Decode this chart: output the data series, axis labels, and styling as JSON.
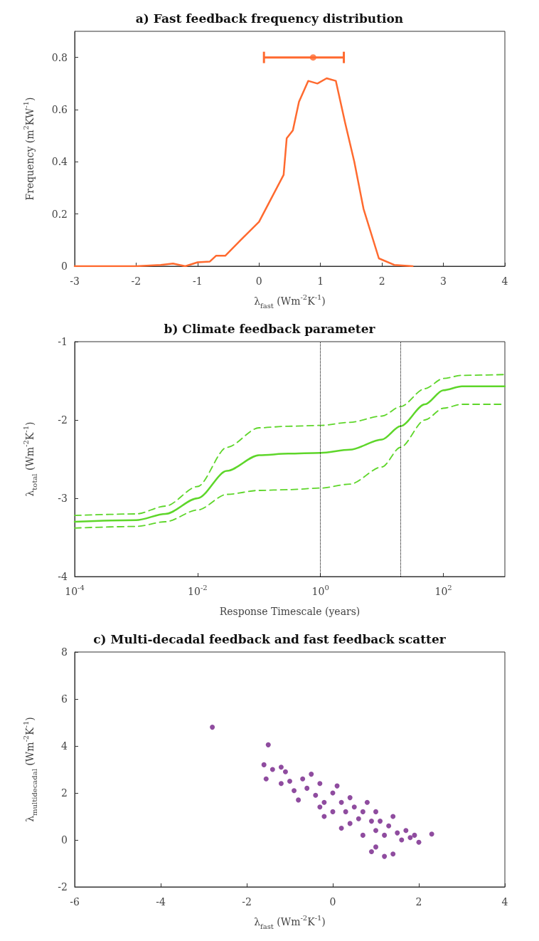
{
  "chart_data": [
    {
      "type": "line",
      "title": "a) Fast feedback frequency distribution",
      "xlabel": "λ$_{fast}$ (Wm$^{-2}$K$^{-1}$)",
      "ylabel": "Frequency (m$^{2}$KW$^{-1}$)",
      "xlim": [
        -3,
        4
      ],
      "xticks": [
        -3,
        -2,
        -1,
        0,
        1,
        2,
        3,
        4
      ],
      "ylim": [
        0,
        0.9
      ],
      "yticks": [
        0,
        0.2,
        0.4,
        0.6,
        0.8
      ],
      "series": [
        {
          "color": "#ff6a2f",
          "x": [
            -3,
            -2.5,
            -2,
            -1.6,
            -1.4,
            -1.2,
            -1.0,
            -0.8,
            -0.7,
            -0.55,
            -0.3,
            0,
            0.2,
            0.4,
            0.45,
            0.55,
            0.65,
            0.8,
            0.95,
            1.1,
            1.25,
            1.4,
            1.55,
            1.7,
            1.95,
            2.2,
            2.5
          ],
          "values": [
            0,
            0,
            0,
            0.005,
            0.01,
            0,
            0.015,
            0.018,
            0.04,
            0.04,
            0.1,
            0.17,
            0.26,
            0.35,
            0.49,
            0.52,
            0.63,
            0.71,
            0.7,
            0.72,
            0.71,
            0.55,
            0.4,
            0.22,
            0.03,
            0.005,
            0
          ]
        },
        {
          "type": "scatter",
          "color": "#ff6a2f",
          "x": [
            0.88
          ],
          "values": [
            0.8
          ],
          "xerrors": [
            [
              0.08,
              1.38
            ]
          ]
        }
      ]
    },
    {
      "type": "line",
      "title": "b) Climate feedback parameter",
      "xlabel": "Response Timescale (years)",
      "ylabel": "λ$_{total}$ (Wm$^{-2}$K$^{-1}$)",
      "log": "x",
      "xlim": [
        0.0001,
        1000
      ],
      "xticks": [
        {
          "value": 0.0001,
          "label": "10$^{-4}$"
        },
        {
          "value": 0.01,
          "label": "10$^{-2}$"
        },
        {
          "value": 1,
          "label": "10$^{0}$"
        },
        {
          "value": 100,
          "label": "10$^{2}$"
        }
      ],
      "ylim": [
        -4,
        -1
      ],
      "yticks": [
        -1,
        -2,
        -3,
        -4
      ],
      "ref_lines": [
        {
          "axis": "x",
          "value": 1,
          "line_style": "dotted",
          "color": "#000000"
        },
        {
          "axis": "x",
          "value": 20,
          "line_style": "dotted",
          "color": "#000000"
        }
      ],
      "series": [
        {
          "color": "#5ed62a",
          "x": [
            0.0001,
            0.001,
            0.003,
            0.01,
            0.03,
            0.1,
            0.3,
            1,
            3,
            10,
            20,
            50,
            100,
            200,
            1000
          ],
          "values": [
            -3.3,
            -3.28,
            -3.2,
            -3.0,
            -2.65,
            -2.45,
            -2.43,
            -2.42,
            -2.38,
            -2.25,
            -2.08,
            -1.8,
            -1.62,
            -1.57,
            -1.57
          ]
        },
        {
          "color": "#5ed62a",
          "line_style": "dashed",
          "x": [
            0.0001,
            0.001,
            0.003,
            0.01,
            0.03,
            0.1,
            0.3,
            1,
            3,
            10,
            20,
            50,
            100,
            200,
            1000
          ],
          "values": [
            -3.22,
            -3.2,
            -3.1,
            -2.85,
            -2.35,
            -2.1,
            -2.08,
            -2.07,
            -2.03,
            -1.95,
            -1.83,
            -1.6,
            -1.47,
            -1.43,
            -1.42
          ]
        },
        {
          "color": "#5ed62a",
          "line_style": "dashed",
          "x": [
            0.0001,
            0.001,
            0.003,
            0.01,
            0.03,
            0.1,
            0.3,
            1,
            3,
            10,
            20,
            50,
            100,
            200,
            1000
          ],
          "values": [
            -3.38,
            -3.36,
            -3.3,
            -3.15,
            -2.95,
            -2.9,
            -2.89,
            -2.87,
            -2.82,
            -2.6,
            -2.35,
            -2.0,
            -1.85,
            -1.8,
            -1.8
          ]
        }
      ]
    },
    {
      "type": "scatter",
      "title": "c) Multi-decadal feedback and fast feedback scatter",
      "xlabel": "λ$_{fast}$ (Wm$^{-2}$K$^{-1}$)",
      "ylabel": "λ$_{multidecadal}$ (Wm$^{-2}$K$^{-1}$)",
      "marker": "circle",
      "xlim": [
        -6,
        4
      ],
      "xticks": [
        -6,
        -4,
        -2,
        0,
        2,
        4
      ],
      "ylim": [
        -2,
        8
      ],
      "yticks": [
        -2,
        0,
        2,
        4,
        6,
        8
      ],
      "series": [
        {
          "color": "#7b2d8e",
          "x": [
            -2.8,
            -1.5,
            -1.6,
            -1.55,
            -1.4,
            -1.2,
            -1.1,
            -1.2,
            -1.0,
            -0.9,
            -0.7,
            -0.5,
            -0.6,
            -0.4,
            -0.3,
            -0.2,
            0.0,
            0.1,
            0.2,
            0.0,
            -0.2,
            0.3,
            0.4,
            0.5,
            0.6,
            0.4,
            0.7,
            0.8,
            0.9,
            1.0,
            1.0,
            1.1,
            1.2,
            1.3,
            1.4,
            1.5,
            1.6,
            1.7,
            1.8,
            1.9,
            2.3,
            1.4,
            1.0,
            0.7,
            0.2,
            -0.3,
            0.9,
            2.0,
            -0.8,
            1.2
          ],
          "values": [
            4.8,
            4.05,
            3.2,
            2.6,
            3.0,
            3.1,
            2.9,
            2.4,
            2.5,
            2.1,
            2.6,
            2.8,
            2.2,
            1.9,
            2.4,
            1.6,
            2.0,
            2.3,
            1.6,
            1.2,
            1.0,
            1.2,
            1.8,
            1.4,
            0.9,
            0.7,
            1.2,
            1.6,
            0.8,
            1.2,
            0.4,
            0.8,
            0.2,
            0.6,
            1.0,
            0.3,
            0.0,
            0.4,
            0.1,
            0.2,
            0.25,
            -0.6,
            -0.3,
            0.2,
            0.5,
            1.4,
            -0.5,
            -0.1,
            1.7,
            -0.7
          ]
        }
      ]
    }
  ]
}
